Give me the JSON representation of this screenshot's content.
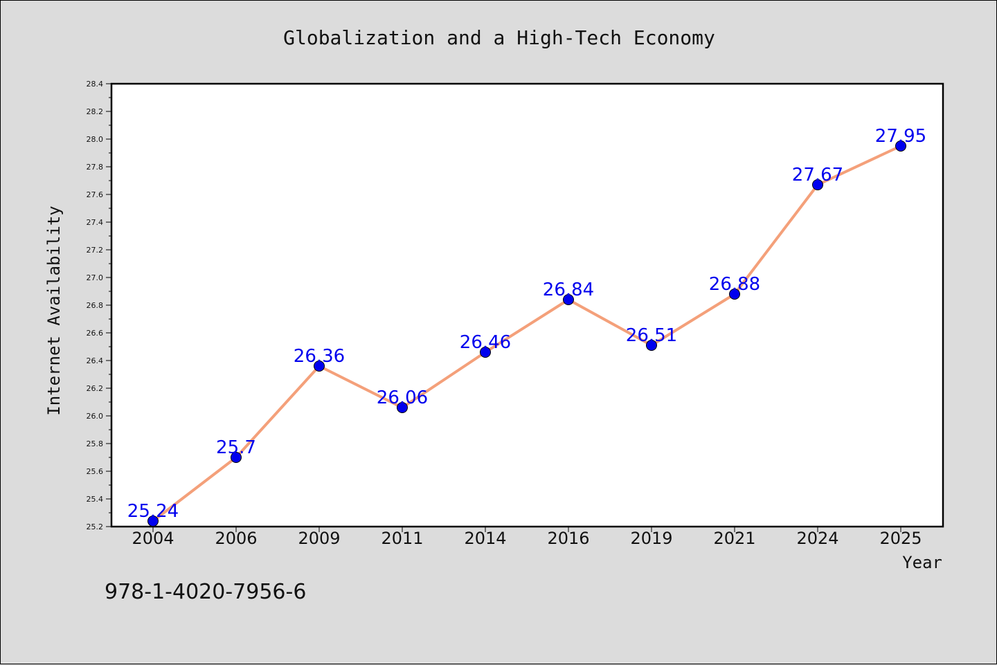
{
  "chart_data": {
    "type": "line",
    "title": "Globalization and a High-Tech Economy",
    "xlabel": "Year",
    "ylabel": "Internet Availability",
    "categories": [
      "2004",
      "2006",
      "2009",
      "2011",
      "2014",
      "2016",
      "2019",
      "2021",
      "2024",
      "2025"
    ],
    "series": [
      {
        "values": [
          25.24,
          25.7,
          26.36,
          26.06,
          26.46,
          26.84,
          26.51,
          26.88,
          27.67,
          27.95
        ],
        "labels": [
          "25.24",
          "25.7",
          "26.36",
          "26.06",
          "26.46",
          "26.84",
          "26.51",
          "26.88",
          "27.67",
          "27.95"
        ],
        "line_color": "#f4a07a",
        "marker_color": "#0000ee"
      }
    ],
    "ylim": [
      25.2,
      28.4
    ],
    "yticks": [
      "25.2",
      "25.4",
      "25.6",
      "25.8",
      "26.0",
      "26.2",
      "26.4",
      "26.6",
      "26.8",
      "27.0",
      "27.2",
      "27.4",
      "27.6",
      "27.8",
      "28.0",
      "28.2",
      "28.4"
    ],
    "grid": false,
    "label_color": "#0000ee"
  },
  "footer": {
    "isbn": "978-1-4020-7956-6"
  }
}
